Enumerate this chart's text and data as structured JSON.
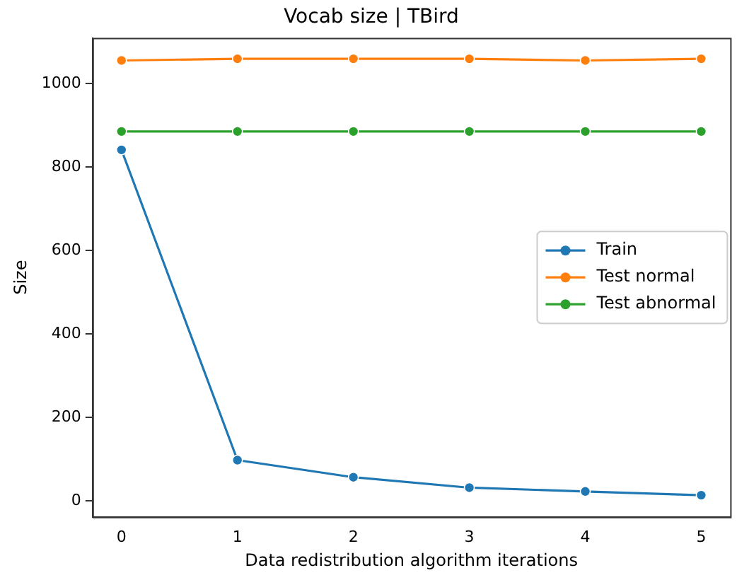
{
  "chart_data": {
    "type": "line",
    "title": "Vocab size | TBird",
    "xlabel": "Data redistribution algorithm iterations",
    "ylabel": "Size",
    "x": [
      0,
      1,
      2,
      3,
      4,
      5
    ],
    "series": [
      {
        "name": "Train",
        "color": "#1f77b4",
        "values": [
          841,
          98,
          57,
          32,
          23,
          14
        ]
      },
      {
        "name": "Test normal",
        "color": "#ff7f0e",
        "values": [
          1055,
          1059,
          1059,
          1059,
          1055,
          1059
        ]
      },
      {
        "name": "Test abnormal",
        "color": "#2ca02c",
        "values": [
          885,
          885,
          885,
          885,
          885,
          885
        ]
      }
    ],
    "xlim": [
      -0.25,
      5.25
    ],
    "xticks": [
      0,
      1,
      2,
      3,
      4,
      5
    ],
    "ylim": [
      -38,
      1109
    ],
    "yticks": [
      0,
      200,
      400,
      600,
      800,
      1000
    ],
    "grid": false,
    "legend": "right",
    "marker": "circle",
    "line_style": "solid"
  }
}
